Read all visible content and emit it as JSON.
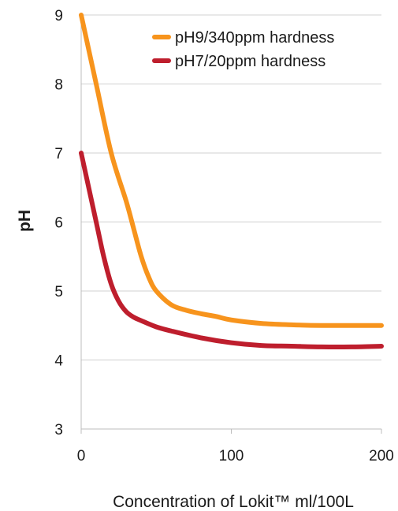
{
  "chart_data": {
    "type": "line",
    "title": "",
    "xlabel": "Concentration of Lokit™ ml/100L",
    "ylabel": "pH",
    "xlim": [
      0,
      200
    ],
    "ylim": [
      3,
      9
    ],
    "x_ticks": [
      0,
      100,
      200
    ],
    "y_ticks": [
      3,
      4,
      5,
      6,
      7,
      8,
      9
    ],
    "grid": "horizontal",
    "legend_position": "top-right",
    "series": [
      {
        "name": "pH9/340ppm hardness",
        "color": "#f7941d",
        "x": [
          0,
          10,
          20,
          30,
          35,
          40,
          45,
          50,
          60,
          70,
          80,
          90,
          100,
          120,
          140,
          160,
          180,
          200
        ],
        "y": [
          9.0,
          8.0,
          7.0,
          6.3,
          5.9,
          5.5,
          5.2,
          5.0,
          4.8,
          4.72,
          4.67,
          4.63,
          4.58,
          4.53,
          4.51,
          4.5,
          4.5,
          4.5
        ]
      },
      {
        "name": "pH7/20ppm hardness",
        "color": "#be1e2d",
        "x": [
          0,
          5,
          10,
          15,
          20,
          25,
          30,
          35,
          40,
          50,
          60,
          80,
          100,
          120,
          140,
          160,
          180,
          200
        ],
        "y": [
          7.0,
          6.5,
          6.0,
          5.5,
          5.1,
          4.85,
          4.7,
          4.62,
          4.57,
          4.48,
          4.42,
          4.32,
          4.25,
          4.21,
          4.2,
          4.19,
          4.19,
          4.2
        ]
      }
    ]
  }
}
